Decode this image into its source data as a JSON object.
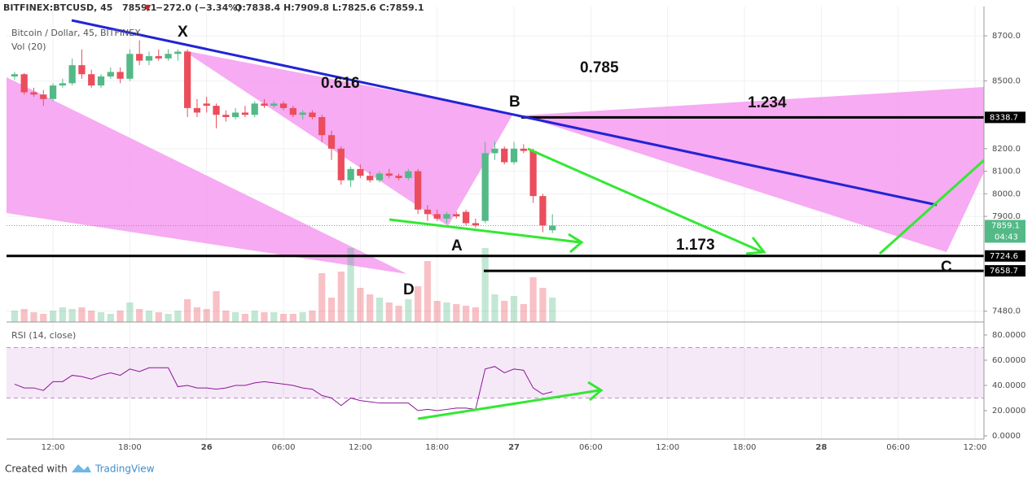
{
  "header": {
    "symbol": "BITFINEX:BTCUSD, 45",
    "last": "7859.1",
    "arrow": "▼",
    "change": "−272.0 (−3.34%)",
    "ohlc": "O:7838.4 H:7909.8 L:7825.6 C:7859.1"
  },
  "chart_data": {
    "type": "candlestick",
    "title": "Bitcoin / Dollar, 45, BITFINEX",
    "x": [
      9,
      9.75,
      10.5,
      11.25,
      12,
      12.75,
      13.5,
      14.25,
      15,
      15.75,
      16.5,
      17.25,
      18,
      18.75,
      19.5,
      20.25,
      21,
      21.75,
      22.5,
      23.25,
      24,
      24.75,
      25.5,
      26.25,
      27,
      27.75,
      28.5,
      29.25,
      30,
      30.75,
      31.5,
      32.25,
      33,
      33.75,
      34.5,
      35.25,
      36,
      36.75,
      37.5,
      38.25,
      39,
      39.75,
      40.5,
      41.25,
      42,
      42.75,
      43.5,
      44.25,
      45,
      45.75,
      46.5,
      47.25,
      48,
      48.75,
      49.5,
      50.25,
      51
    ],
    "open": [
      8520,
      8530,
      8450,
      8440,
      8420,
      8480,
      8490,
      8570,
      8530,
      8480,
      8520,
      8540,
      8510,
      8620,
      8590,
      8610,
      8600,
      8620,
      8630,
      8380,
      8400,
      8390,
      8350,
      8340,
      8360,
      8350,
      8400,
      8390,
      8400,
      8380,
      8350,
      8360,
      8340,
      8260,
      8200,
      8060,
      8110,
      8080,
      8060,
      8090,
      8080,
      8070,
      8100,
      7930,
      7910,
      7890,
      7910,
      7920,
      7870,
      7880,
      8180,
      8200,
      8140,
      8200,
      8190,
      7990,
      7838.4
    ],
    "high": [
      8540,
      8535,
      8470,
      8460,
      8490,
      8510,
      8600,
      8640,
      8550,
      8530,
      8560,
      8560,
      8640,
      8680,
      8630,
      8640,
      8640,
      8640,
      8640,
      8420,
      8430,
      8400,
      8370,
      8380,
      8390,
      8410,
      8420,
      8410,
      8410,
      8390,
      8370,
      8370,
      8350,
      8280,
      8210,
      8120,
      8130,
      8100,
      8100,
      8110,
      8090,
      8110,
      8110,
      7950,
      7930,
      7920,
      7920,
      7930,
      7890,
      8230,
      8230,
      8210,
      8230,
      8220,
      8200,
      8000,
      7909.8
    ],
    "low": [
      8505,
      8440,
      8430,
      8390,
      8410,
      8470,
      8480,
      8510,
      8470,
      8470,
      8510,
      8490,
      8500,
      8570,
      8570,
      8590,
      8590,
      8590,
      8340,
      8340,
      8360,
      8290,
      8320,
      8330,
      8340,
      8340,
      8380,
      8380,
      8370,
      8340,
      8330,
      8330,
      8230,
      8150,
      8040,
      8030,
      8070,
      8050,
      8050,
      8070,
      8060,
      8060,
      7910,
      7880,
      7880,
      7870,
      7890,
      7860,
      7850,
      7870,
      8150,
      8130,
      8130,
      8180,
      7960,
      7830,
      7825.6
    ],
    "close": [
      8530,
      8450,
      8440,
      8420,
      8480,
      8490,
      8570,
      8530,
      8480,
      8520,
      8540,
      8510,
      8620,
      8590,
      8610,
      8600,
      8620,
      8630,
      8380,
      8360,
      8390,
      8350,
      8340,
      8360,
      8350,
      8400,
      8390,
      8400,
      8380,
      8350,
      8360,
      8340,
      8260,
      8200,
      8060,
      8110,
      8080,
      8060,
      8090,
      8080,
      8070,
      8100,
      7930,
      7910,
      7890,
      7910,
      7900,
      7870,
      7860,
      8180,
      8200,
      8140,
      8200,
      8190,
      7990,
      7860,
      7859.1
    ],
    "up_color": "#53b987",
    "down_color": "#eb4d5c",
    "xlim": [
      8.37,
      84.7
    ],
    "xticks": [
      {
        "value": 12,
        "label": "12:00"
      },
      {
        "value": 18,
        "label": "18:00"
      },
      {
        "value": 24,
        "label": "26"
      },
      {
        "value": 30,
        "label": "06:00"
      },
      {
        "value": 36,
        "label": "12:00"
      },
      {
        "value": 42,
        "label": "18:00"
      },
      {
        "value": 48,
        "label": "27"
      },
      {
        "value": 54,
        "label": "06:00"
      },
      {
        "value": 60,
        "label": "12:00"
      },
      {
        "value": 66,
        "label": "18:00"
      },
      {
        "value": 72,
        "label": "28"
      },
      {
        "value": 78,
        "label": "06:00"
      },
      {
        "value": 84,
        "label": "12:00"
      }
    ],
    "ylim": [
      7432,
      8830
    ],
    "yticks": [
      {
        "value": 8700,
        "label": "8700.0"
      },
      {
        "value": 8500,
        "label": "8500.0"
      },
      {
        "value": 8200,
        "label": "8200.0"
      },
      {
        "value": 8100,
        "label": "8100.0"
      },
      {
        "value": 8000,
        "label": "8000.0"
      },
      {
        "value": 7900,
        "label": "7900.0"
      },
      {
        "value": 7480,
        "label": "7480.0"
      }
    ],
    "last": 7859.1,
    "countdown": "04:43",
    "levels": [
      8338.7,
      7724.6,
      7658.7
    ],
    "annotations": [
      "X",
      "0.616",
      "0.785",
      "B",
      "1.234",
      "A",
      "1.173",
      "C",
      "D"
    ],
    "volume": {
      "label": "Vol (20)",
      "values": [
        14,
        16,
        12,
        10,
        14,
        18,
        16,
        18,
        14,
        12,
        10,
        14,
        24,
        16,
        14,
        12,
        10,
        14,
        28,
        18,
        16,
        38,
        14,
        12,
        10,
        14,
        12,
        12,
        10,
        10,
        12,
        14,
        60,
        30,
        62,
        91,
        42,
        34,
        30,
        24,
        20,
        28,
        44,
        75,
        26,
        24,
        22,
        20,
        18,
        91,
        34,
        26,
        32,
        22,
        55,
        42,
        30
      ]
    },
    "rsi": {
      "label": "RSI (14, close)",
      "color": "#8e1599",
      "values": [
        41,
        38,
        38,
        36,
        43,
        43,
        48,
        47,
        45,
        48,
        50,
        48,
        53,
        51,
        54,
        54,
        54,
        39,
        40,
        38,
        38,
        37,
        38,
        40,
        40,
        42,
        43,
        42,
        41,
        40,
        38,
        37,
        32,
        30,
        24,
        30,
        28,
        27,
        26,
        26,
        26,
        26,
        20,
        21,
        20,
        21,
        22,
        22,
        21,
        53,
        55,
        50,
        53,
        52,
        38,
        33,
        35
      ],
      "ylim": [
        0,
        89
      ],
      "levels": [
        30,
        70
      ],
      "yticks": [
        {
          "value": 80,
          "label": "80.0000"
        },
        {
          "value": 60,
          "label": "60.0000"
        },
        {
          "value": 40,
          "label": "40.0000"
        },
        {
          "value": 20,
          "label": "20.0000"
        },
        {
          "value": 0,
          "label": "0.0000"
        }
      ]
    }
  },
  "footer": {
    "created": "Created with",
    "brand": "TradingView"
  }
}
